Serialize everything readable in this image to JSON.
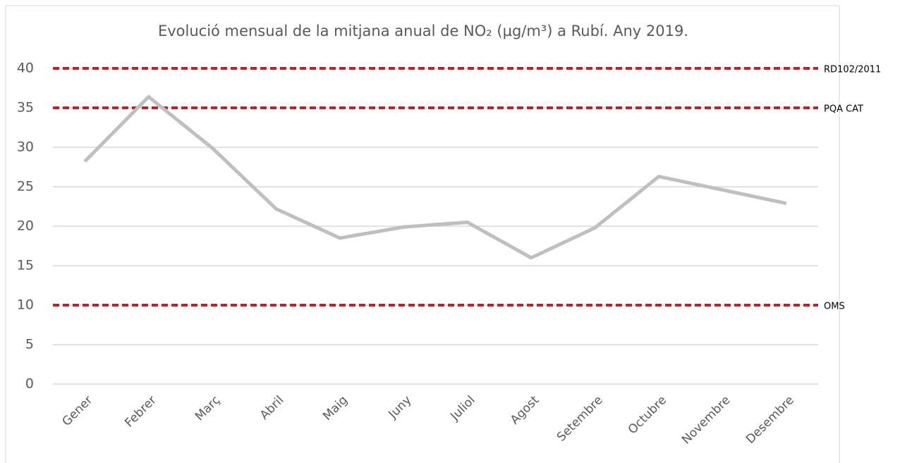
{
  "chart_data": {
    "type": "line",
    "title": "Evolució mensual de la mitjana anual de NO₂ (µg/m³) a Rubí. Any 2019.",
    "categories": [
      "Gener",
      "Febrer",
      "Març",
      "Abril",
      "Maig",
      "Juny",
      "Juliol",
      "Agost",
      "Setembre",
      "Octubre",
      "Novembre",
      "Desembre"
    ],
    "values": [
      28.2,
      36.4,
      29.9,
      22.2,
      18.5,
      19.9,
      20.5,
      16.0,
      19.8,
      26.3,
      24.6,
      22.9
    ],
    "color": "#bfbfbf",
    "ylim": [
      0,
      40
    ],
    "yticks": [
      0,
      5,
      10,
      15,
      20,
      25,
      30,
      35,
      40
    ],
    "grid": true,
    "reference_lines": [
      {
        "value": 40,
        "label": "RD102/2011"
      },
      {
        "value": 35,
        "label": "PQA CAT"
      },
      {
        "value": 10,
        "label": "OMS"
      }
    ],
    "reference_color": "#c0202a"
  }
}
